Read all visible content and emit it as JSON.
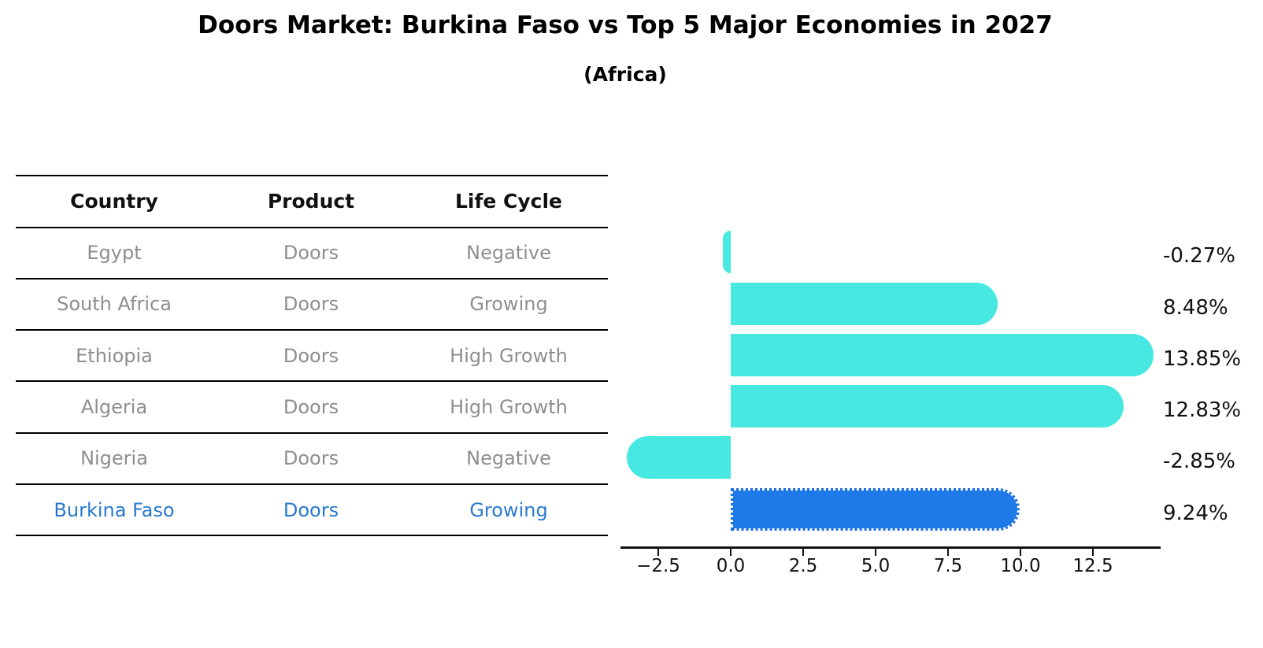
{
  "title": "Doors Market: Burkina Faso vs Top 5 Major Economies in 2027",
  "subtitle": "(Africa)",
  "table": {
    "headers": [
      "Country",
      "Product",
      "Life Cycle"
    ],
    "rows": [
      {
        "country": "Egypt",
        "product": "Doors",
        "life_cycle": "Negative"
      },
      {
        "country": "South Africa",
        "product": "Doors",
        "life_cycle": "Growing"
      },
      {
        "country": "Ethiopia",
        "product": "Doors",
        "life_cycle": "High Growth"
      },
      {
        "country": "Algeria",
        "product": "Doors",
        "life_cycle": "High Growth"
      },
      {
        "country": "Nigeria",
        "product": "Doors",
        "life_cycle": "Negative"
      },
      {
        "country": "Burkina Faso",
        "product": "Doors",
        "life_cycle": "Growing"
      }
    ],
    "highlight_row_index": 5,
    "text_color": "#8e8e8e",
    "header_color": "#111111",
    "highlight_text_color": "#2979cf"
  },
  "chart_data": {
    "type": "bar",
    "orientation": "horizontal",
    "title": "Doors Market: Burkina Faso vs Top 5 Major Economies in 2027",
    "subtitle": "(Africa)",
    "categories": [
      "Egypt",
      "South Africa",
      "Ethiopia",
      "Algeria",
      "Nigeria",
      "Burkina Faso"
    ],
    "values": [
      -0.27,
      8.48,
      13.85,
      12.83,
      -2.85,
      9.24
    ],
    "value_labels": [
      "-0.27%",
      "8.48%",
      "13.85%",
      "12.83%",
      "-2.85%",
      "9.24%"
    ],
    "highlight_index": 5,
    "xlabel": "",
    "ylabel": "",
    "xlim": [
      -3.9,
      14.85
    ],
    "x_tick_values": [
      -2.5,
      0.0,
      2.5,
      5.0,
      7.5,
      10.0,
      12.5
    ],
    "x_tick_labels": [
      "−2.5",
      "0.0",
      "2.5",
      "5.0",
      "7.5",
      "10.0",
      "12.5"
    ],
    "grid": false,
    "legend": false,
    "colors": {
      "bar": "#46e8e1",
      "highlight_bar": "#1e7ae8",
      "highlight_border": "#1b6fdd",
      "axis": "#111111",
      "value_label": "#111111"
    }
  }
}
